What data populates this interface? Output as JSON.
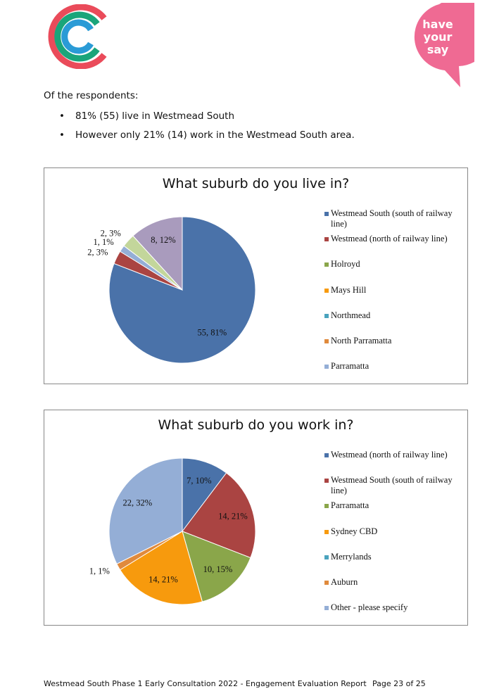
{
  "header": {
    "badge_text": [
      "have",
      "your",
      "say"
    ]
  },
  "intro": "Of the respondents:",
  "bullets": [
    "81% (55) live in Westmead South",
    "However only 21% (14) work in the Westmead South area."
  ],
  "chart_data": [
    {
      "type": "pie",
      "title": "What suburb do you live in?",
      "categories": [
        "Westmead South (south of railway line)",
        "Westmead (north of railway line)",
        "Holroyd",
        "Mays Hill",
        "Northmead",
        "North Parramatta",
        "Parramatta",
        null,
        null
      ],
      "values": [
        55,
        2,
        0,
        0,
        0,
        0,
        1,
        2,
        8
      ],
      "value_labels": [
        "55, 81%",
        "2, 3%",
        null,
        null,
        null,
        null,
        "1, 1%",
        "2, 3%",
        "8, 12%"
      ],
      "colors": [
        "#4a72a9",
        "#aa4442",
        "#8aa64a",
        "#f79a0d",
        "#4aa3bd",
        "#e08a3c",
        "#94aed6",
        "#c3d69b",
        "#a99bbd"
      ]
    },
    {
      "type": "pie",
      "title": "What suburb do you work in?",
      "categories": [
        "Westmead (north of railway line)",
        "Westmead South (south of railway line)",
        "Parramatta",
        "Sydney CBD",
        "Merrylands",
        "Auburn",
        "Other - please specify"
      ],
      "values": [
        7,
        14,
        10,
        14,
        0,
        1,
        22
      ],
      "value_labels": [
        "7, 10%",
        "14, 21%",
        "10, 15%",
        "14, 21%",
        null,
        "1, 1%",
        "22, 32%"
      ],
      "colors": [
        "#4a72a9",
        "#aa4442",
        "#8aa64a",
        "#f79a0d",
        "#4aa3bd",
        "#e08a3c",
        "#94aed6"
      ]
    }
  ],
  "footer": {
    "left": "Westmead South Phase 1 Early Consultation 2022 - Engagement Evaluation Report",
    "right": "Page 23 of 25"
  }
}
